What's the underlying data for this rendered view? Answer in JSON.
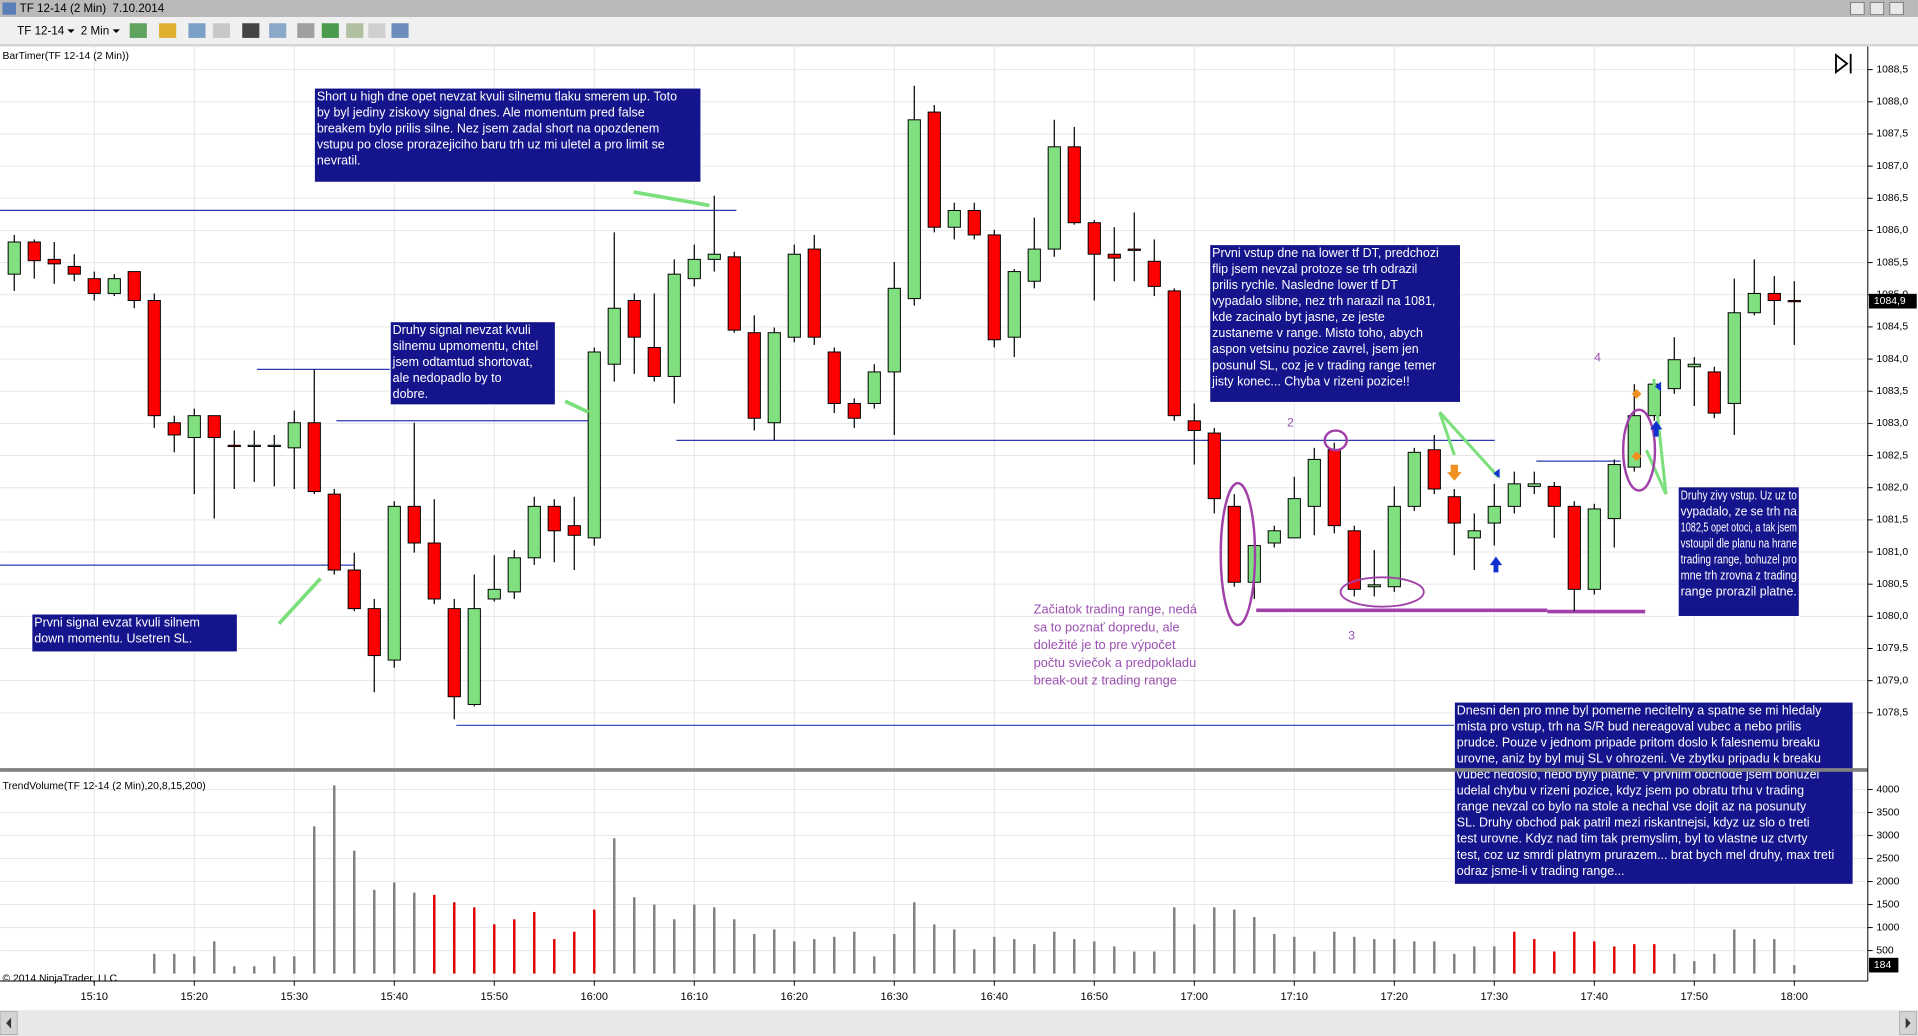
{
  "window": {
    "title": "TF 12-14 (2 Min)  7.10.2014",
    "instrument": "TF 12-14",
    "interval": "2 Min"
  },
  "copyright": "© 2014 NinjaTrader, LLC",
  "annotations": {
    "boxes": [
      [
        "Short u high dne opet nevzat kvuli silnemu tlaku smerem up. Toto",
        "by byl jediny ziskovy signal dnes. Ale momentum pred false",
        "breakem bylo prilis silne. Nez jsem zadal short na opozdenem",
        "vstupu po close prorazejiciho baru trh uz mi uletel a pro limit se",
        "nevratil."
      ],
      [
        "Druhy signal nevzat kvuli",
        "silnemu upmomentu, chtel",
        "jsem odtamtud shortovat,",
        "ale nedopadlo by to",
        "dobre."
      ],
      [
        "Prvni signal evzat kvuli silnem",
        "down momentu. Usetren SL."
      ],
      [
        "Prvni vstup dne na lower tf DT, predchozi",
        "flip jsem nevzal protoze se trh odrazil",
        "prilis rychle. Nasledne lower tf DT",
        "vypadalo slibne, nez trh narazil na 1081,",
        "kde zacinalo byt jasne, ze jeste",
        "zustaneme v range. Misto toho, abych",
        "aspon vetsinu pozice zavrel, jsem jen",
        "posunul SL, coz je v trading range temer",
        "jisty konec... Chyba v rizeni pozice!!"
      ],
      [
        "Druhy zivy vstup. Uz uz to",
        "vypadalo, ze se trh na",
        "1082,5 opet otoci, a tak jsem",
        "vstoupil dle planu na hrane",
        "trading range, bohuzel pro",
        "mne trh zrovna z trading",
        "range prorazil platne."
      ],
      [
        "Dnesni den pro mne byl pomerne necitelny a spatne se mi hledaly",
        "mista pro vstup, trh na S/R bud nereagoval vubec a nebo prilis",
        "prudce. Pouze v jednom pripade pritom doslo k falesnemu breaku",
        "urovne, aniz by byl muj SL v ohrozeni. Ve zbytku pripadu k breaku",
        "vubec nedoslo, nebo byly platne. V prvnim obchode jsem bohuzel",
        "udelal chybu v rizeni pozice, kdyz jsem po obratu trhu v trading",
        "range nevzal co bylo na stole a nechal vse dojit az na posunuty",
        "SL. Druhy obchod pak patril mezi riskantnejsi, kdyz uz slo o treti",
        "test urovne. Kdyz nad tim tak premyslim, byl to vlastne uz ctvrty",
        "test, coz uz smrdi platnym prurazem... brat bych mel druhy, max treti",
        "odraz jsme-li v trading range..."
      ]
    ],
    "note": [
      "Začiatok trading range, nedá",
      "sa to poznať dopredu, ale",
      "doležité je to pre výpočet",
      "počtu sviečok a predpokladu",
      "break-out z trading range"
    ],
    "labels": [
      "2",
      "3",
      "4"
    ]
  },
  "chart_data": [
    {
      "type": "candlestick",
      "title": "BarTimer(TF 12-14 (2 Min))",
      "x": [
        902,
        904,
        906,
        908,
        910,
        912,
        914,
        916,
        918,
        920,
        922,
        924,
        926,
        928,
        930,
        932,
        934,
        936,
        938,
        940,
        942,
        944,
        946,
        948,
        950,
        952,
        954,
        956,
        958,
        960,
        962,
        964,
        966,
        968,
        970,
        972,
        974,
        976,
        978,
        980,
        982,
        984,
        986,
        988,
        990,
        992,
        994,
        996,
        998,
        1000,
        1002,
        1004,
        1006,
        1008,
        1010,
        1012,
        1014,
        1016,
        1018,
        1020,
        1022,
        1024,
        1026,
        1028,
        1030,
        1032,
        1034,
        1036,
        1038,
        1040,
        1042,
        1044,
        1046,
        1048,
        1050,
        1052,
        1054,
        1056,
        1058,
        1060,
        1062,
        1064,
        1066,
        1068,
        1070,
        1072,
        1074,
        1076,
        1078,
        1080
      ],
      "open": [
        1085.32,
        1085.82,
        1085.55,
        1085.44,
        1085.25,
        1085.02,
        1085.36,
        1084.91,
        1083.01,
        1082.78,
        1083.12,
        1082.66,
        1082.66,
        1082.66,
        1082.62,
        1083.01,
        1081.9,
        1080.72,
        1080.12,
        1079.32,
        1081.71,
        1081.14,
        1080.12,
        1078.63,
        1080.27,
        1080.38,
        1080.91,
        1081.71,
        1081.41,
        1081.22,
        1083.92,
        1084.91,
        1084.18,
        1083.73,
        1085.25,
        1085.55,
        1085.59,
        1084.41,
        1083.01,
        1084.34,
        1085.71,
        1084.11,
        1083.31,
        1083.31,
        1083.8,
        1084.94,
        1087.84,
        1086.05,
        1086.31,
        1085.93,
        1084.34,
        1085.21,
        1085.71,
        1087.3,
        1086.12,
        1085.63,
        1085.71,
        1085.52,
        1085.06,
        1083.04,
        1082.85,
        1081.71,
        1080.53,
        1081.14,
        1081.22,
        1081.71,
        1082.59,
        1081.33,
        1080.46,
        1080.46,
        1081.71,
        1082.59,
        1081.86,
        1081.22,
        1081.45,
        1081.71,
        1082.02,
        1082.02,
        1081.71,
        1080.42,
        1081.52,
        1082.32,
        1083.12,
        1083.54,
        1083.88,
        1083.8,
        1083.31,
        1084.72,
        1085.02,
        1084.91
      ],
      "high": [
        1085.93,
        1085.86,
        1085.82,
        1085.63,
        1085.36,
        1085.32,
        1085.36,
        1085.02,
        1083.12,
        1083.23,
        1083.12,
        1082.89,
        1082.89,
        1082.82,
        1083.2,
        1083.84,
        1081.98,
        1080.99,
        1080.27,
        1081.79,
        1083.01,
        1081.82,
        1080.27,
        1080.65,
        1080.95,
        1081.03,
        1081.86,
        1081.82,
        1081.86,
        1084.18,
        1085.97,
        1085.02,
        1085.02,
        1085.55,
        1085.78,
        1086.54,
        1085.67,
        1084.68,
        1084.49,
        1085.78,
        1085.93,
        1084.18,
        1083.39,
        1083.92,
        1085.51,
        1088.25,
        1087.95,
        1086.43,
        1086.43,
        1086.01,
        1085.4,
        1086.2,
        1087.72,
        1087.61,
        1086.16,
        1086.05,
        1086.28,
        1085.86,
        1085.1,
        1083.31,
        1082.93,
        1081.9,
        1081.22,
        1081.41,
        1082.17,
        1082.62,
        1082.7,
        1081.41,
        1081.03,
        1082.02,
        1082.62,
        1082.82,
        1081.98,
        1081.6,
        1082.06,
        1082.25,
        1082.25,
        1082.09,
        1081.79,
        1081.75,
        1082.44,
        1083.61,
        1083.69,
        1084.34,
        1084.03,
        1083.88,
        1085.25,
        1085.55,
        1085.29,
        1085.21
      ],
      "low": [
        1085.06,
        1085.25,
        1085.17,
        1085.21,
        1084.91,
        1084.98,
        1084.79,
        1082.93,
        1082.55,
        1081.9,
        1081.52,
        1081.98,
        1082.09,
        1082.02,
        1081.98,
        1081.9,
        1080.65,
        1080.08,
        1078.82,
        1079.2,
        1080.99,
        1080.19,
        1078.4,
        1078.6,
        1080.23,
        1080.27,
        1080.8,
        1080.84,
        1080.72,
        1081.1,
        1083.65,
        1083.77,
        1083.65,
        1083.31,
        1085.13,
        1085.36,
        1084.41,
        1082.89,
        1082.74,
        1084.26,
        1084.22,
        1083.16,
        1082.93,
        1083.23,
        1082.82,
        1084.83,
        1085.97,
        1085.86,
        1085.86,
        1084.18,
        1084.03,
        1085.1,
        1085.59,
        1086.09,
        1084.91,
        1085.21,
        1085.21,
        1084.98,
        1083.04,
        1082.36,
        1081.6,
        1080.46,
        1080.27,
        1081.07,
        1081.22,
        1081.26,
        1081.29,
        1080.31,
        1080.31,
        1080.38,
        1081.64,
        1081.9,
        1080.95,
        1080.72,
        1081.1,
        1081.6,
        1081.9,
        1081.22,
        1080.08,
        1080.34,
        1081.07,
        1082.25,
        1083.04,
        1083.46,
        1083.27,
        1083.08,
        1082.82,
        1084.68,
        1084.53,
        1084.22
      ],
      "close": [
        1085.82,
        1085.53,
        1085.48,
        1085.32,
        1085.02,
        1085.25,
        1084.91,
        1083.12,
        1082.82,
        1083.12,
        1082.78,
        1082.64,
        1082.66,
        1082.66,
        1083.01,
        1081.94,
        1080.72,
        1080.12,
        1079.39,
        1081.71,
        1081.14,
        1080.27,
        1078.75,
        1080.12,
        1080.42,
        1080.91,
        1081.71,
        1081.33,
        1081.26,
        1084.11,
        1084.79,
        1084.34,
        1083.73,
        1085.32,
        1085.55,
        1085.63,
        1084.45,
        1083.08,
        1084.41,
        1085.63,
        1084.34,
        1083.31,
        1083.08,
        1083.8,
        1085.1,
        1087.72,
        1086.05,
        1086.31,
        1085.93,
        1084.3,
        1085.36,
        1085.71,
        1087.3,
        1086.12,
        1085.63,
        1085.57,
        1085.69,
        1085.13,
        1083.12,
        1082.89,
        1081.83,
        1080.53,
        1081.1,
        1081.33,
        1081.83,
        1082.44,
        1081.41,
        1080.42,
        1080.49,
        1081.71,
        1082.55,
        1081.98,
        1081.45,
        1081.33,
        1081.71,
        1082.06,
        1082.06,
        1081.71,
        1080.42,
        1081.67,
        1082.36,
        1083.12,
        1083.61,
        1083.99,
        1083.92,
        1083.16,
        1084.72,
        1085.02,
        1084.91,
        1084.9
      ],
      "last_label": "1084,9",
      "up_color": "#80e080",
      "down_color": "#ff0000",
      "xlim": [
        900.58,
        1087.35
      ],
      "ylim": [
        1077.64,
        1088.86
      ],
      "yticks": [
        {
          "value": 1078.5,
          "label": "1078,5"
        },
        {
          "value": 1079,
          "label": "1079,0"
        },
        {
          "value": 1079.5,
          "label": "1079,5"
        },
        {
          "value": 1080,
          "label": "1080,0"
        },
        {
          "value": 1080.5,
          "label": "1080,5"
        },
        {
          "value": 1081,
          "label": "1081,0"
        },
        {
          "value": 1081.5,
          "label": "1081,5"
        },
        {
          "value": 1082,
          "label": "1082,0"
        },
        {
          "value": 1082.5,
          "label": "1082,5"
        },
        {
          "value": 1083,
          "label": "1083,0"
        },
        {
          "value": 1083.5,
          "label": "1083,5"
        },
        {
          "value": 1084,
          "label": "1084,0"
        },
        {
          "value": 1084.5,
          "label": "1084,5"
        },
        {
          "value": 1085,
          "label": "1085,0"
        },
        {
          "value": 1085.5,
          "label": "1085,5"
        },
        {
          "value": 1086,
          "label": "1086,0"
        },
        {
          "value": 1086.5,
          "label": "1086,5"
        },
        {
          "value": 1087,
          "label": "1087,0"
        },
        {
          "value": 1087.5,
          "label": "1087,5"
        },
        {
          "value": 1088,
          "label": "1088,0"
        },
        {
          "value": 1088.5,
          "label": "1088,5"
        }
      ],
      "grid": true
    },
    {
      "type": "bar",
      "title": "TrendVolume(TF 12-14 (2 Min),20,8,15,200)",
      "x": [
        902,
        904,
        906,
        908,
        910,
        912,
        914,
        916,
        918,
        920,
        922,
        924,
        926,
        928,
        930,
        932,
        934,
        936,
        938,
        940,
        942,
        944,
        946,
        948,
        950,
        952,
        954,
        956,
        958,
        960,
        962,
        964,
        966,
        968,
        970,
        972,
        974,
        976,
        978,
        980,
        982,
        984,
        986,
        988,
        990,
        992,
        994,
        996,
        998,
        1000,
        1002,
        1004,
        1006,
        1008,
        1010,
        1012,
        1014,
        1016,
        1018,
        1020,
        1022,
        1024,
        1026,
        1028,
        1030,
        1032,
        1034,
        1036,
        1038,
        1040,
        1042,
        1044,
        1046,
        1048,
        1050,
        1052,
        1054,
        1056,
        1058,
        1060,
        1062,
        1064,
        1066,
        1068,
        1070,
        1072,
        1074,
        1076,
        1078,
        1080
      ],
      "values": [
        null,
        null,
        null,
        null,
        null,
        null,
        null,
        430,
        430,
        375,
        700,
        160,
        160,
        375,
        375,
        3200,
        4090,
        2670,
        1820,
        1980,
        1760,
        1710,
        1550,
        1440,
        1070,
        1180,
        1340,
        750,
        910,
        1390,
        2940,
        1660,
        1500,
        1180,
        1500,
        1440,
        1180,
        860,
        960,
        700,
        750,
        800,
        910,
        375,
        860,
        1550,
        1070,
        960,
        530,
        800,
        750,
        640,
        910,
        750,
        700,
        590,
        480,
        480,
        1440,
        1070,
        1440,
        1390,
        1230,
        860,
        800,
        480,
        910,
        800,
        750,
        750,
        700,
        700,
        430,
        590,
        590,
        910,
        750,
        480,
        910,
        700,
        590,
        640,
        640,
        430,
        270,
        430,
        960,
        750,
        750,
        184
      ],
      "colors": [
        "gray",
        "gray",
        "gray",
        "gray",
        "gray",
        "gray",
        "gray",
        "gray",
        "gray",
        "gray",
        "gray",
        "gray",
        "gray",
        "gray",
        "gray",
        "gray",
        "gray",
        "gray",
        "gray",
        "gray",
        "gray",
        "red",
        "red",
        "red",
        "red",
        "red",
        "red",
        "red",
        "red",
        "red",
        "gray",
        "gray",
        "gray",
        "gray",
        "gray",
        "gray",
        "gray",
        "gray",
        "gray",
        "gray",
        "gray",
        "gray",
        "gray",
        "gray",
        "gray",
        "gray",
        "gray",
        "gray",
        "gray",
        "gray",
        "gray",
        "gray",
        "gray",
        "gray",
        "gray",
        "gray",
        "gray",
        "gray",
        "gray",
        "gray",
        "gray",
        "gray",
        "gray",
        "gray",
        "gray",
        "gray",
        "gray",
        "gray",
        "gray",
        "gray",
        "gray",
        "gray",
        "gray",
        "gray",
        "gray",
        "red",
        "red",
        "red",
        "red",
        "red",
        "red",
        "red",
        "red",
        "gray",
        "gray",
        "gray",
        "gray",
        "gray",
        "gray",
        "gray"
      ],
      "xlim": [
        900.58,
        1087.35
      ],
      "xticks": [
        {
          "value": 910,
          "label": "15:10"
        },
        {
          "value": 920,
          "label": "15:20"
        },
        {
          "value": 930,
          "label": "15:30"
        },
        {
          "value": 940,
          "label": "15:40"
        },
        {
          "value": 950,
          "label": "15:50"
        },
        {
          "value": 960,
          "label": "16:00"
        },
        {
          "value": 970,
          "label": "16:10"
        },
        {
          "value": 980,
          "label": "16:20"
        },
        {
          "value": 990,
          "label": "16:30"
        },
        {
          "value": 1000,
          "label": "16:40"
        },
        {
          "value": 1010,
          "label": "16:50"
        },
        {
          "value": 1020,
          "label": "17:00"
        },
        {
          "value": 1030,
          "label": "17:10"
        },
        {
          "value": 1040,
          "label": "17:20"
        },
        {
          "value": 1050,
          "label": "17:30"
        },
        {
          "value": 1060,
          "label": "17:40"
        },
        {
          "value": 1070,
          "label": "17:50"
        },
        {
          "value": 1080,
          "label": "18:00"
        }
      ],
      "ylim": [
        -160,
        4385
      ],
      "yticks": [
        500,
        1000,
        1500,
        2000,
        2500,
        3000,
        3500,
        4000
      ],
      "grid": true
    }
  ]
}
